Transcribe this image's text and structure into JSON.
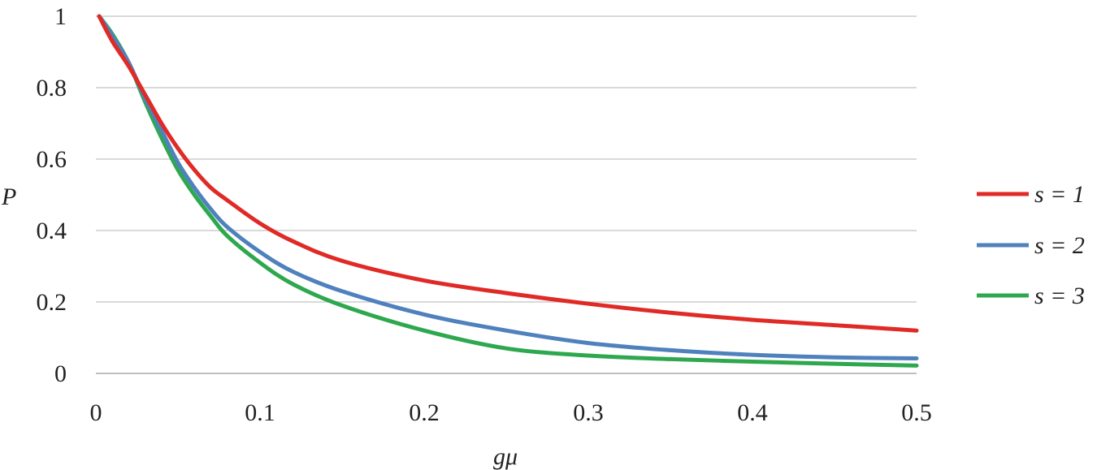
{
  "chart_data": {
    "type": "line",
    "title": "",
    "xlabel": "gμ",
    "ylabel": "P",
    "xlim": [
      0,
      0.5
    ],
    "ylim": [
      0,
      1
    ],
    "x_ticks": [
      "0",
      "0.1",
      "0.2",
      "0.3",
      "0.4",
      "0.5"
    ],
    "y_ticks": [
      "0",
      "0.2",
      "0.4",
      "0.6",
      "0.8",
      "1"
    ],
    "grid": "horizontal",
    "legend_position": "right",
    "series": [
      {
        "name": "s = 1",
        "color": "#e02a26",
        "x": [
          0.002,
          0.01,
          0.02,
          0.03,
          0.04,
          0.05,
          0.06,
          0.07,
          0.08,
          0.1,
          0.12,
          0.15,
          0.2,
          0.25,
          0.3,
          0.35,
          0.4,
          0.45,
          0.5
        ],
        "y": [
          1.0,
          0.93,
          0.86,
          0.78,
          0.7,
          0.63,
          0.57,
          0.52,
          0.485,
          0.42,
          0.37,
          0.315,
          0.26,
          0.225,
          0.195,
          0.17,
          0.15,
          0.135,
          0.12
        ]
      },
      {
        "name": "s = 2",
        "color": "#4f81bd",
        "x": [
          0.002,
          0.01,
          0.02,
          0.03,
          0.04,
          0.05,
          0.06,
          0.07,
          0.08,
          0.1,
          0.12,
          0.15,
          0.2,
          0.25,
          0.3,
          0.35,
          0.4,
          0.45,
          0.5
        ],
        "y": [
          1.0,
          0.945,
          0.87,
          0.77,
          0.68,
          0.59,
          0.52,
          0.46,
          0.41,
          0.34,
          0.285,
          0.23,
          0.165,
          0.12,
          0.085,
          0.065,
          0.052,
          0.045,
          0.042
        ]
      },
      {
        "name": "s = 3",
        "color": "#2ea84e",
        "x": [
          0.002,
          0.01,
          0.02,
          0.03,
          0.04,
          0.05,
          0.06,
          0.07,
          0.08,
          0.1,
          0.12,
          0.15,
          0.2,
          0.25,
          0.3,
          0.35,
          0.4,
          0.45,
          0.5
        ],
        "y": [
          1.0,
          0.95,
          0.87,
          0.76,
          0.66,
          0.57,
          0.5,
          0.44,
          0.385,
          0.31,
          0.25,
          0.19,
          0.12,
          0.07,
          0.05,
          0.04,
          0.033,
          0.027,
          0.022
        ]
      }
    ]
  }
}
